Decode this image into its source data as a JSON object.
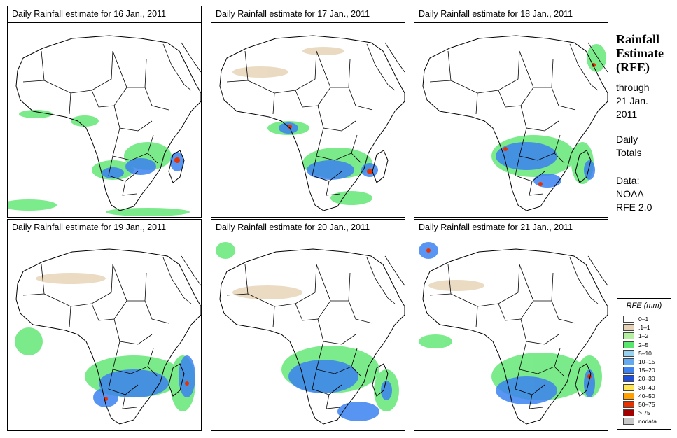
{
  "panels": [
    {
      "title": "Daily Rainfall estimate for  16 Jan., 2011"
    },
    {
      "title": "Daily Rainfall estimate for  17 Jan., 2011"
    },
    {
      "title": "Daily Rainfall estimate for  18 Jan., 2011"
    },
    {
      "title": "Daily Rainfall estimate for  19 Jan., 2011"
    },
    {
      "title": "Daily Rainfall estimate for  20 Jan., 2011"
    },
    {
      "title": "Daily Rainfall estimate for  21 Jan., 2011"
    }
  ],
  "sidebar": {
    "title_line1": "Rainfall",
    "title_line2": "Estimate",
    "title_line3": "(RFE)",
    "through_label": "through",
    "through_date_line1": "21 Jan.",
    "through_date_line2": "2011",
    "totals_line1": "Daily",
    "totals_line2": "Totals",
    "data_label": "Data:",
    "data_source_line1": "NOAA–",
    "data_source_line2": "RFE 2.0"
  },
  "legend": {
    "title": "RFE (mm)",
    "items": [
      {
        "label": "0–1",
        "color": "#ffffff"
      },
      {
        "label": ".1–1",
        "color": "#e6d2b4"
      },
      {
        "label": "1–2",
        "color": "#b4f0a0"
      },
      {
        "label": "2–5",
        "color": "#5ae66e"
      },
      {
        "label": "5–10",
        "color": "#96d2f0"
      },
      {
        "label": "10–15",
        "color": "#64aaf0"
      },
      {
        "label": "15–20",
        "color": "#3c82f0"
      },
      {
        "label": "20–30",
        "color": "#1e50dc"
      },
      {
        "label": "30–40",
        "color": "#ffe650"
      },
      {
        "label": "40–50",
        "color": "#ffa000"
      },
      {
        "label": "50–75",
        "color": "#e63200"
      },
      {
        "label": "> 75",
        "color": "#a00000"
      },
      {
        "label": "nodata",
        "color": "#c8c8c8"
      }
    ]
  }
}
